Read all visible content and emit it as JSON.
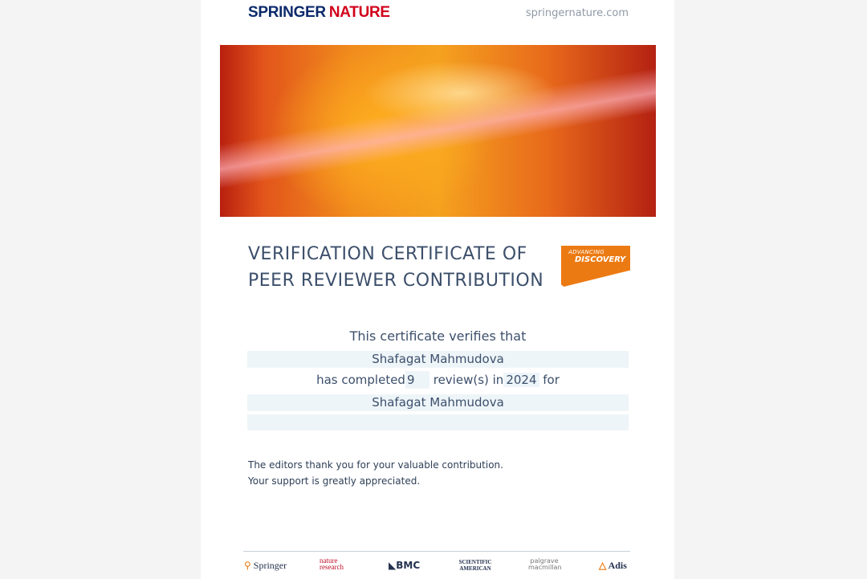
{
  "header": {
    "brand_primary": "SPRINGER",
    "brand_secondary": "NATURE",
    "website": "springernature.com"
  },
  "title": {
    "line1": "VERIFICATION CERTIFICATE OF",
    "line2": "PEER REVIEWER CONTRIBUTION"
  },
  "badge": {
    "small": "ADVANCING",
    "large": "DISCOVERY"
  },
  "body": {
    "intro": "This certificate verifies that",
    "reviewer_name": "Shafagat Mahmudova",
    "completed_prefix": "has completed",
    "review_count": "9",
    "reviews_mid": "review(s) in",
    "year": "2024",
    "for_label": "for",
    "journal": "Shafagat Mahmudova",
    "extra": ""
  },
  "thanks": {
    "line1": "The editors thank you for your valuable contribution.",
    "line2": "Your support is greatly appreciated."
  },
  "footer": {
    "logos": [
      "Springer",
      "nature research",
      "BMC",
      "SCIENTIFIC AMERICAN",
      "palgrave macmillan",
      "Adis"
    ]
  },
  "colors": {
    "navy": "#0c2a6b",
    "red": "#d0021b",
    "orange": "#ec7a12",
    "text": "#3c4f6b"
  }
}
